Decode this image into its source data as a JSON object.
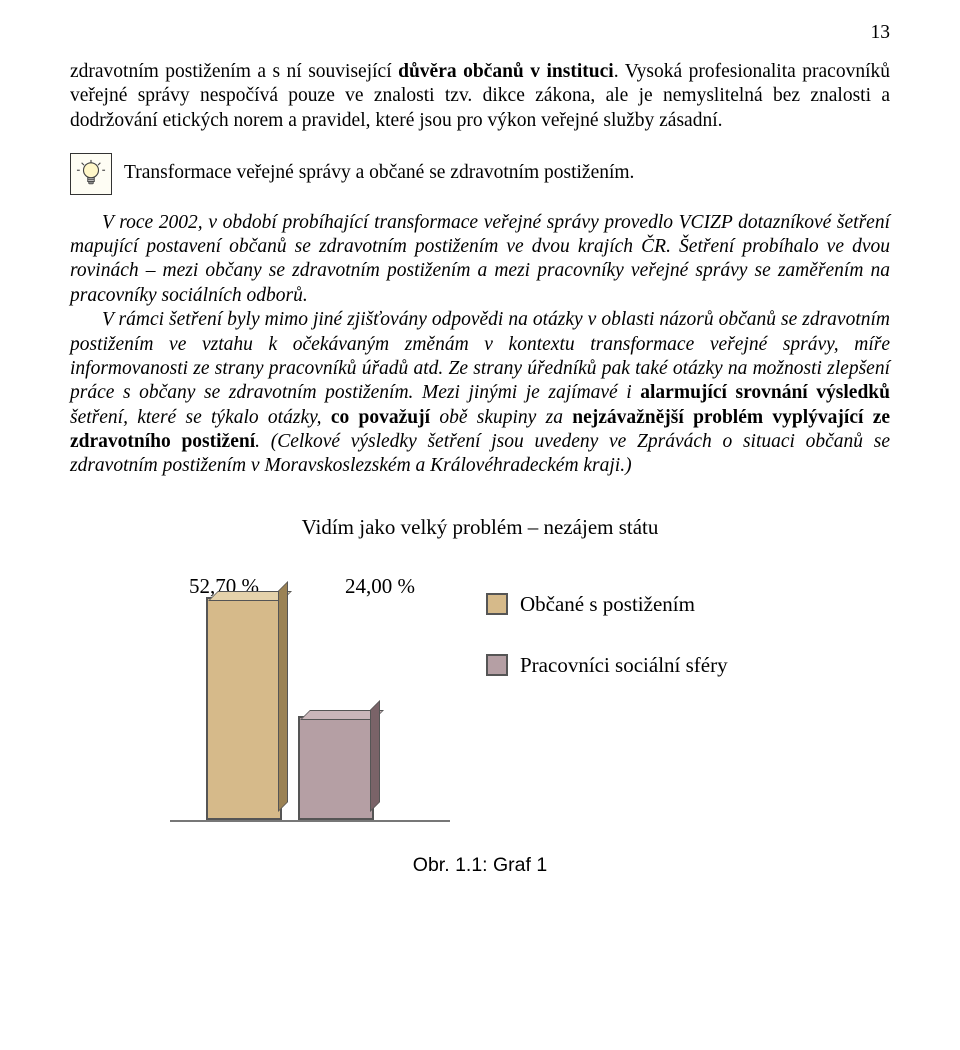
{
  "pageNumber": "13",
  "para1_a": "zdravotním postižením a s ní související ",
  "para1_b": "důvěra občanů v instituci",
  "para1_c": ". Vysoká profesionalita pracovníků veřejné správy nespočívá pouze ve znalosti tzv. dikce zákona, ale je nemyslitelná bez znalosti a dodržování etických norem a pravidel, které jsou pro výkon veřejné služby zásadní.",
  "iconCaption": "Transformace veřejné správy a občané se zdravotním postižením.",
  "ital_p1": "V roce 2002, v období probíhající transformace veřejné správy provedlo VCIZP dotazníkové šetření mapující postavení občanů se zdravotním postižením ve dvou krajích ČR. Šetření probíhalo ve dvou rovinách – mezi občany se zdravotním postižením a mezi pracovníky veřejné správy se zaměřením na pracovníky sociálních odborů.",
  "ital_p2_a": "V rámci šetření byly mimo jiné zjišťovány odpovědi na otázky v oblasti názorů občanů se zdravotním postižením ve vztahu k očekávaným změnám v kontextu transformace veřejné správy, míře informovanosti ze strany pracovníků úřadů atd. Ze strany úředníků pak také otázky na možnosti zlepšení práce s občany se zdravotním postižením. Mezi jinými je zajímavé i ",
  "ital_p2_b": "alarmující srovnání výsledků",
  "ital_p2_c": " šetření, které se týkalo otázky, ",
  "ital_p2_d": "co považují",
  "ital_p2_e": " obě skupiny za ",
  "ital_p2_f": "nejzávažnější problém vyplývající ze zdravotního postižení",
  "ital_p2_g": ". (Celkové výsledky šetření jsou uvedeny ve Zprávách o situaci občanů se zdravotním postižením v Moravskoslezském a Královéhradeckém kraji.)",
  "chart": {
    "title": "Vidím jako velký problém – nezájem státu",
    "bars": [
      {
        "labelPct": "52,70 %",
        "value": 52.7,
        "color": "#d6ba8a",
        "top": "#e5d2ab",
        "side": "#9b8254"
      },
      {
        "labelPct": "24,00 %",
        "value": 24.0,
        "color": "#b59fa4",
        "top": "#cab6ba",
        "side": "#7a6368"
      }
    ],
    "legend": [
      {
        "text": "Občané s postižením",
        "color": "#d6ba8a"
      },
      {
        "text": "Pracovníci sociální sféry",
        "color": "#b59fa4"
      }
    ],
    "chartHeightPx": 230,
    "borderColor": "#555555",
    "baseline": "#777777"
  },
  "caption": "Obr. 1.1: Graf 1"
}
